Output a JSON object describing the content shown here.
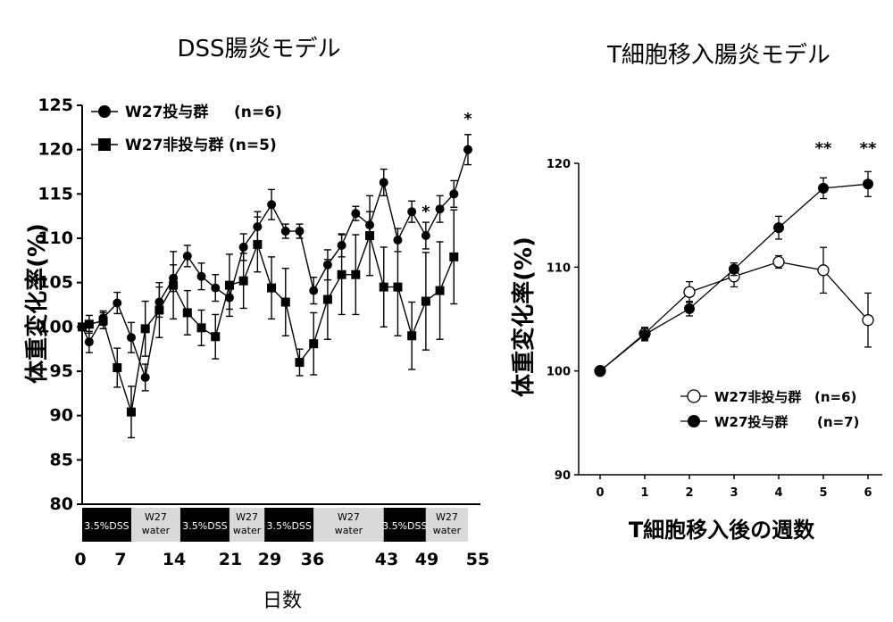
{
  "chart_data": [
    {
      "type": "line",
      "title": "DSS腸炎モデル",
      "xlabel": "日数",
      "ylabel": "体重変化率(%)",
      "ylim": [
        80,
        125
      ],
      "yticks": [
        80,
        85,
        90,
        95,
        100,
        105,
        110,
        115,
        120,
        125
      ],
      "xlim": [
        0,
        55
      ],
      "xtick_labels": [
        "0",
        "7",
        "14",
        "21",
        "29",
        "36",
        "43",
        "49",
        "55"
      ],
      "legend_position": "top-left",
      "treatment_bar": [
        {
          "label": "3.5%DSS",
          "fill": "#000000",
          "text_color": "#ffffff",
          "start": 0,
          "end": 7
        },
        {
          "label": "W27\nwater",
          "fill": "#d9d9d9",
          "text_color": "#000000",
          "start": 7,
          "end": 14
        },
        {
          "label": "3.5%DSS",
          "fill": "#000000",
          "text_color": "#ffffff",
          "start": 14,
          "end": 21
        },
        {
          "label": "W27\nwater",
          "fill": "#d9d9d9",
          "text_color": "#000000",
          "start": 21,
          "end": 26
        },
        {
          "label": "3.5%DSS",
          "fill": "#000000",
          "text_color": "#ffffff",
          "start": 26,
          "end": 33
        },
        {
          "label": "W27\nwater",
          "fill": "#d9d9d9",
          "text_color": "#000000",
          "start": 33,
          "end": 43
        },
        {
          "label": "3.5%DSS",
          "fill": "#000000",
          "text_color": "#ffffff",
          "start": 43,
          "end": 49
        },
        {
          "label": "W27\nwater",
          "fill": "#d9d9d9",
          "text_color": "#000000",
          "start": 49,
          "end": 55
        }
      ],
      "series": [
        {
          "name": "W27投与群",
          "legend_n": "(n=6)",
          "marker": "circle",
          "points": [
            {
              "x": 1,
              "y": 98.3,
              "err": 1.2
            },
            {
              "x": 3,
              "y": 101.0,
              "err": 0.8
            },
            {
              "x": 5,
              "y": 102.7,
              "err": 1.2
            },
            {
              "x": 7,
              "y": 98.8,
              "err": 1.7
            },
            {
              "x": 9,
              "y": 94.3,
              "err": 1.5
            },
            {
              "x": 11,
              "y": 102.8,
              "err": 1.7
            },
            {
              "x": 13,
              "y": 105.5,
              "err": 1.5
            },
            {
              "x": 15,
              "y": 108.0,
              "err": 1.2
            },
            {
              "x": 17,
              "y": 105.7,
              "err": 1.5
            },
            {
              "x": 19,
              "y": 104.4,
              "err": 1.5
            },
            {
              "x": 21,
              "y": 103.3,
              "err": 1.3
            },
            {
              "x": 23,
              "y": 109.0,
              "err": 1.5
            },
            {
              "x": 25,
              "y": 111.3,
              "err": 1.7
            },
            {
              "x": 27,
              "y": 113.8,
              "err": 1.7
            },
            {
              "x": 29,
              "y": 110.8,
              "err": 0.8
            },
            {
              "x": 31,
              "y": 110.8,
              "err": 0.8
            },
            {
              "x": 33,
              "y": 104.1,
              "err": 1.5
            },
            {
              "x": 35,
              "y": 107.0,
              "err": 1.7
            },
            {
              "x": 37,
              "y": 109.2,
              "err": 1.3
            },
            {
              "x": 39,
              "y": 112.8,
              "err": 0.8
            },
            {
              "x": 41,
              "y": 111.5,
              "err": 1.5
            },
            {
              "x": 43,
              "y": 116.3,
              "err": 1.5
            },
            {
              "x": 45,
              "y": 109.8,
              "err": 1.3
            },
            {
              "x": 47,
              "y": 113.0,
              "err": 1.2
            },
            {
              "x": 49,
              "y": 110.3,
              "err": 1.5
            },
            {
              "x": 51,
              "y": 113.3,
              "err": 1.5
            },
            {
              "x": 53,
              "y": 115.0,
              "err": 1.5
            },
            {
              "x": 55,
              "y": 120.0,
              "err": 1.7
            }
          ]
        },
        {
          "name": "W27非投与群",
          "legend_n": "(n=5)",
          "marker": "square",
          "points": [
            {
              "x": 1,
              "y": 100.3,
              "err": 1.0
            },
            {
              "x": 3,
              "y": 100.7,
              "err": 0.9
            },
            {
              "x": 5,
              "y": 95.4,
              "err": 2.2
            },
            {
              "x": 7,
              "y": 90.4,
              "err": 2.9
            },
            {
              "x": 9,
              "y": 99.8,
              "err": 3.1
            },
            {
              "x": 11,
              "y": 101.9,
              "err": 3.1
            },
            {
              "x": 13,
              "y": 104.7,
              "err": 3.8
            },
            {
              "x": 15,
              "y": 101.6,
              "err": 2.5
            },
            {
              "x": 17,
              "y": 99.9,
              "err": 2.0
            },
            {
              "x": 19,
              "y": 98.9,
              "err": 2.5
            },
            {
              "x": 21,
              "y": 104.7,
              "err": 3.5
            },
            {
              "x": 23,
              "y": 105.2,
              "err": 3.1
            },
            {
              "x": 25,
              "y": 109.3,
              "err": 3.1
            },
            {
              "x": 27,
              "y": 104.4,
              "err": 3.5
            },
            {
              "x": 29,
              "y": 102.8,
              "err": 3.8
            },
            {
              "x": 31,
              "y": 96.0,
              "err": 1.5
            },
            {
              "x": 33,
              "y": 98.1,
              "err": 3.5
            },
            {
              "x": 35,
              "y": 103.1,
              "err": 4.5
            },
            {
              "x": 37,
              "y": 105.9,
              "err": 4.5
            },
            {
              "x": 39,
              "y": 105.9,
              "err": 4.5
            },
            {
              "x": 41,
              "y": 110.3,
              "err": 4.5
            },
            {
              "x": 43,
              "y": 104.5,
              "err": 4.5
            },
            {
              "x": 45,
              "y": 104.5,
              "err": 5.5
            },
            {
              "x": 47,
              "y": 99.0,
              "err": 3.8
            },
            {
              "x": 49,
              "y": 102.9,
              "err": 5.5
            },
            {
              "x": 51,
              "y": 104.1,
              "err": 5.5
            },
            {
              "x": 53,
              "y": 107.9,
              "err": 5.3
            }
          ]
        }
      ],
      "shared_start": {
        "x": 0,
        "y": 100
      },
      "annotations": [
        {
          "x": 49,
          "y_above": 113,
          "text": "*"
        },
        {
          "x": 55,
          "y_above": 123.5,
          "text": "*"
        }
      ]
    },
    {
      "type": "line",
      "title": "T細胞移入腸炎モデル",
      "xlabel": "T細胞移入後の週数",
      "ylabel": "体重変化率(%)",
      "ylim": [
        90,
        120
      ],
      "yticks": [
        90,
        100,
        110,
        120
      ],
      "xlim": [
        0,
        6
      ],
      "xticks": [
        0,
        1,
        2,
        3,
        4,
        5,
        6
      ],
      "legend_position": "bottom-right",
      "series": [
        {
          "name": "W27非投与群",
          "legend_n": "(n=6)",
          "marker": "open-circle",
          "points": [
            {
              "x": 0,
              "y": 100,
              "err": 0
            },
            {
              "x": 1,
              "y": 103.6,
              "err": 0.6
            },
            {
              "x": 2,
              "y": 107.6,
              "err": 1.0
            },
            {
              "x": 3,
              "y": 109.1,
              "err": 1.0
            },
            {
              "x": 4,
              "y": 110.5,
              "err": 0.6
            },
            {
              "x": 5,
              "y": 109.7,
              "err": 2.2
            },
            {
              "x": 6,
              "y": 104.9,
              "err": 2.6
            }
          ]
        },
        {
          "name": "W27投与群",
          "legend_n": "(n=7)",
          "marker": "filled-circle",
          "points": [
            {
              "x": 0,
              "y": 100,
              "err": 0
            },
            {
              "x": 1,
              "y": 103.5,
              "err": 0.6
            },
            {
              "x": 2,
              "y": 106.0,
              "err": 0.7
            },
            {
              "x": 3,
              "y": 109.8,
              "err": 0.6
            },
            {
              "x": 4,
              "y": 113.8,
              "err": 1.1
            },
            {
              "x": 5,
              "y": 117.6,
              "err": 1.0
            },
            {
              "x": 6,
              "y": 118.0,
              "err": 1.2
            }
          ]
        }
      ],
      "annotations": [
        {
          "x": 5,
          "text": "**"
        },
        {
          "x": 6,
          "text": "**"
        }
      ]
    }
  ]
}
